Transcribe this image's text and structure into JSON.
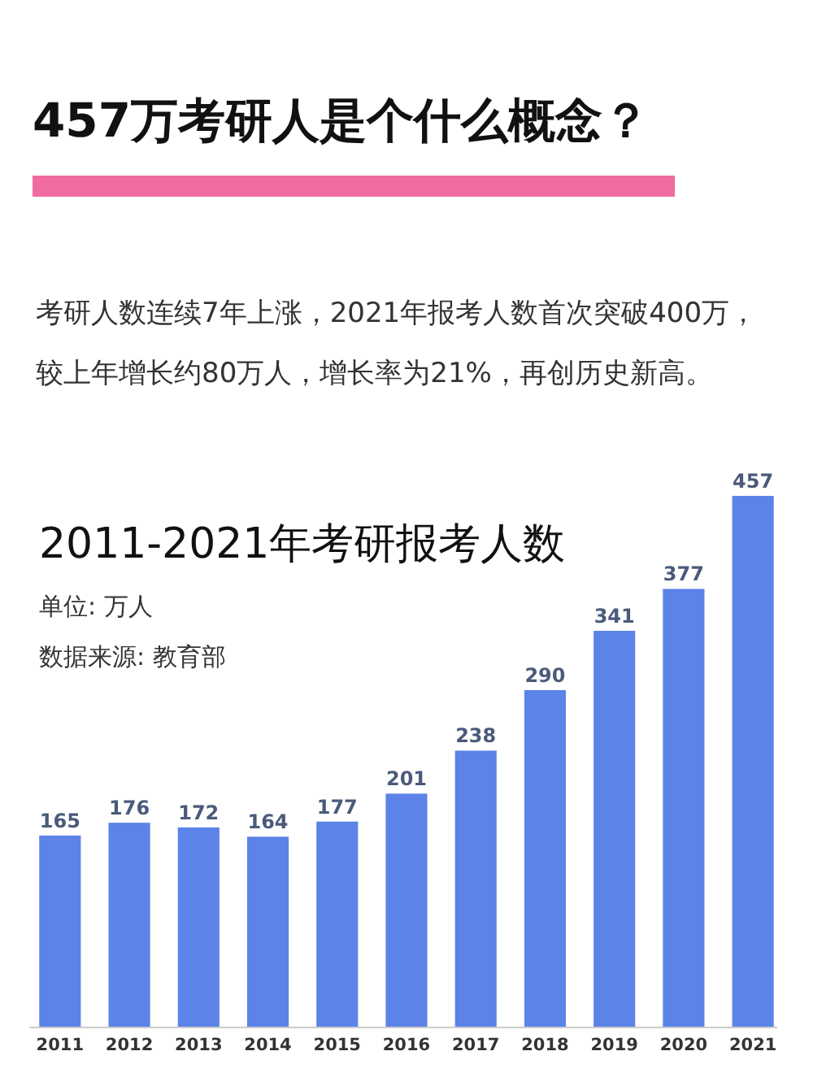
{
  "chart_data": {
    "type": "bar",
    "title": "457万考研人是个什么概念？",
    "subtitle": "考研人数连续7年上涨，2021年报考人数首次突破400万，较上年增长约80万人，增长率为21%，再创历史新高。",
    "annotations": [
      "2011-2021年考研报考人数",
      "单位: 万人",
      "数据来源: 教育部"
    ],
    "categories": [
      "2011",
      "2012",
      "2013",
      "2014",
      "2015",
      "2016",
      "2017",
      "2018",
      "2019",
      "2020",
      "2021"
    ],
    "values": [
      165,
      176,
      172,
      164,
      177,
      201,
      238,
      290,
      341,
      377,
      457
    ],
    "color": "#5b83e8",
    "data_labels": true
  }
}
